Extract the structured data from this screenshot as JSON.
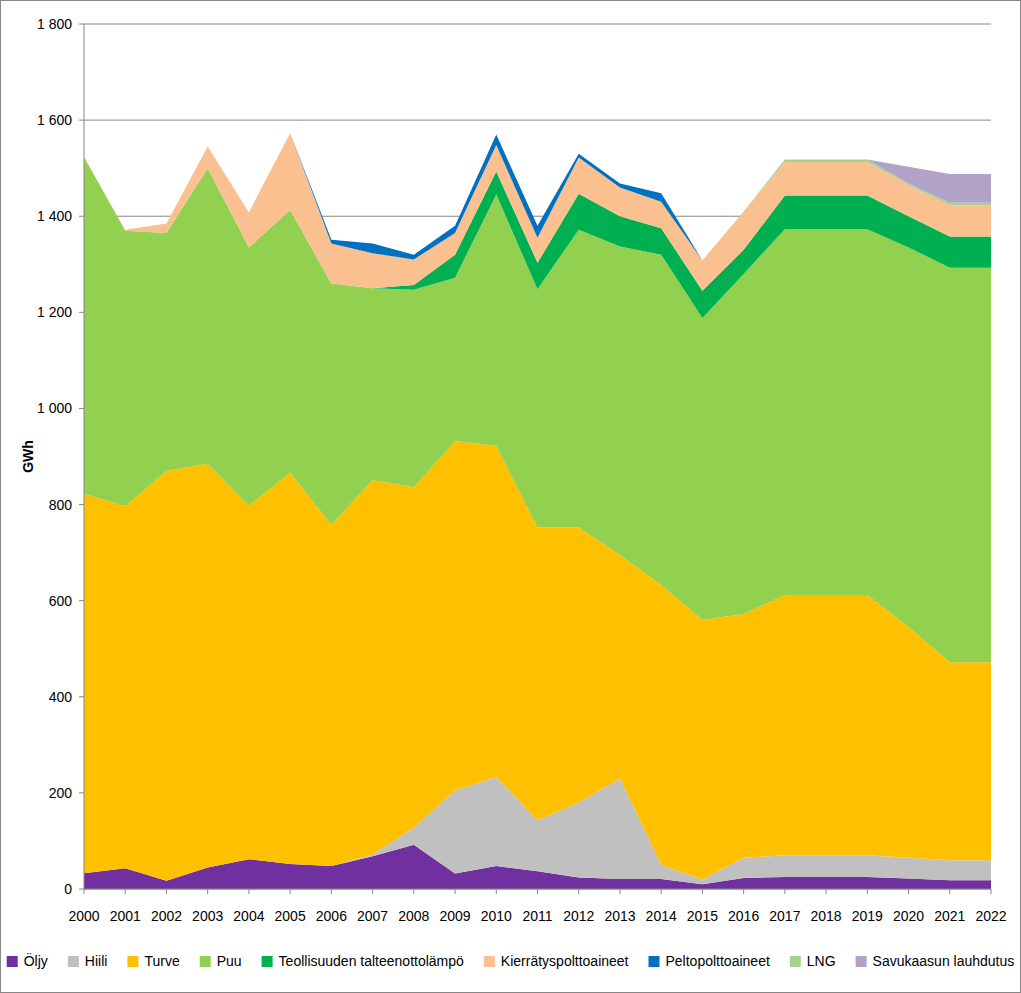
{
  "chart_data": {
    "type": "area",
    "stacked": true,
    "grid": true,
    "legend": "bottom",
    "y_label": "GWh",
    "x": [
      2000,
      2001,
      2002,
      2003,
      2004,
      2005,
      2006,
      2007,
      2008,
      2009,
      2010,
      2011,
      2012,
      2013,
      2014,
      2015,
      2016,
      2017,
      2018,
      2019,
      2020,
      2021,
      2022
    ],
    "xlim": [
      2000,
      2022
    ],
    "xticks": [
      2000,
      2001,
      2002,
      2003,
      2004,
      2005,
      2006,
      2007,
      2008,
      2009,
      2010,
      2011,
      2012,
      2013,
      2014,
      2015,
      2016,
      2017,
      2018,
      2019,
      2020,
      2021,
      2022
    ],
    "ylim": [
      0,
      1800
    ],
    "yticks": [
      0,
      200,
      400,
      600,
      800,
      {
        "value": 1000,
        "label": "1 000"
      },
      {
        "value": 1200,
        "label": "1 200"
      },
      {
        "value": 1400,
        "label": "1 400"
      },
      {
        "value": 1600,
        "label": "1 600"
      },
      {
        "value": 1800,
        "label": "1 800"
      }
    ],
    "series": [
      {
        "name": "Öljy",
        "color": "#7030a0",
        "values": [
          33,
          43,
          17,
          45,
          62,
          52,
          48,
          68,
          92,
          32,
          48,
          37,
          24,
          21,
          21,
          10,
          23,
          25,
          25,
          25,
          22,
          18,
          18
        ]
      },
      {
        "name": "Hiili",
        "color": "#c0c0c0",
        "values": [
          0,
          0,
          0,
          0,
          0,
          0,
          0,
          4,
          36,
          173,
          185,
          106,
          156,
          209,
          29,
          10,
          42,
          45,
          45,
          45,
          43,
          42,
          42
        ]
      },
      {
        "name": "Turve",
        "color": "#ffc000",
        "values": [
          789,
          754,
          853,
          840,
          736,
          814,
          710,
          779,
          708,
          727,
          689,
          609,
          572,
          465,
          583,
          540,
          507,
          542,
          542,
          542,
          480,
          412,
          412
        ]
      },
      {
        "name": "Puu",
        "color": "#92d050",
        "values": [
          701,
          573,
          495,
          615,
          537,
          547,
          502,
          399,
          411,
          340,
          523,
          496,
          620,
          642,
          687,
          628,
          708,
          761,
          761,
          761,
          790,
          821,
          821
        ]
      },
      {
        "name": "Teollisuuden talteenottolämpö",
        "color": "#00b050",
        "values": [
          0,
          0,
          0,
          0,
          0,
          0,
          0,
          0,
          10,
          48,
          48,
          55,
          75,
          63,
          55,
          57,
          50,
          70,
          70,
          70,
          65,
          65,
          65
        ]
      },
      {
        "name": "Kierrätyspolttoaineet",
        "color": "#fac090",
        "values": [
          0,
          2,
          20,
          45,
          73,
          160,
          83,
          73,
          53,
          45,
          55,
          52,
          75,
          60,
          55,
          63,
          80,
          70,
          70,
          70,
          65,
          65,
          65
        ]
      },
      {
        "name": "Peltopolttoaineet",
        "color": "#0070c0",
        "values": [
          0,
          0,
          0,
          0,
          0,
          0,
          8,
          20,
          10,
          15,
          22,
          25,
          8,
          8,
          18,
          0,
          0,
          0,
          0,
          0,
          0,
          0,
          0
        ]
      },
      {
        "name": "LNG",
        "color": "#a9d18e",
        "values": [
          0,
          0,
          0,
          0,
          0,
          0,
          0,
          0,
          0,
          0,
          0,
          0,
          0,
          0,
          0,
          0,
          0,
          5,
          5,
          5,
          3,
          5,
          5
        ]
      },
      {
        "name": "Savukaasun lauhdutus",
        "color": "#b3a2c7",
        "values": [
          0,
          0,
          0,
          0,
          0,
          0,
          0,
          0,
          0,
          0,
          0,
          0,
          0,
          0,
          0,
          0,
          0,
          0,
          0,
          0,
          35,
          60,
          60
        ]
      }
    ]
  }
}
